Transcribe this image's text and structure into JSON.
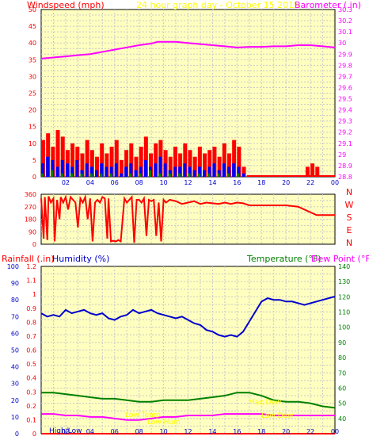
{
  "colors": {
    "plot_bg": "#FFFFC0",
    "page_bg": "#FFFFFF",
    "frame": "#000000",
    "grid": "#C8C8C8",
    "wind_red": "#FF0000",
    "wind_blue": "#0000FF",
    "wind_green": "#008000",
    "barometer": "#FF00FF",
    "direction": "#FF0000",
    "rain": "#FF0000",
    "humidity": "#0000CC",
    "temperature": "#008000",
    "dewpoint": "#FF00FF",
    "title_yellow": "#FFFF00",
    "highlow": "#FFFF00"
  },
  "header": {
    "windspeed_label": "Windspeed (mph)",
    "title": "24 hour graph day - October 15 2015",
    "barometer_label": "Barometer (.in)"
  },
  "direction_panel": {
    "compass": [
      "N",
      "W",
      "S",
      "E",
      "N"
    ]
  },
  "bottom_header": {
    "rainfall_label": "Rainfall (.in)",
    "humidity_label": "Humidity (%)",
    "temperature_label": "Temperature (°F)",
    "dewpoint_label": "Dew Point (°F)"
  },
  "annotations": {
    "high_low_label": "High/Low",
    "low_temp": "Low Temp",
    "low_hum": "Low Hum",
    "max_dew": "Max Dew",
    "low_dew": "Low Dew"
  },
  "chart_data": [
    {
      "type": "bar",
      "id": "wind",
      "title": "24 hour graph day - October 15 2015",
      "ylabel": "Windspeed (mph)",
      "y2label": "Barometer (.in)",
      "ylim": [
        0,
        50
      ],
      "y2lim": [
        28.8,
        30.3
      ],
      "yticks": [
        0,
        5,
        10,
        15,
        20,
        25,
        30,
        35,
        40,
        45,
        50
      ],
      "y2ticks": [
        "28.8",
        "28.9",
        "29",
        "29.1",
        "29.2",
        "29.3",
        "29.4",
        "29.5",
        "29.6",
        "29.7",
        "29.8",
        "29.9",
        "30",
        "30.1",
        "30.2",
        "30.3"
      ],
      "xticks": [
        "02",
        "04",
        "06",
        "08",
        "10",
        "12",
        "14",
        "16",
        "18",
        "20",
        "22",
        "00"
      ],
      "xlim_hours": [
        0,
        24
      ],
      "grid": true,
      "series": [
        {
          "name": "Barometer (.in)",
          "role": "line",
          "x": [
            0,
            1,
            2,
            3,
            4,
            5,
            6,
            7,
            8,
            9,
            9.5,
            10,
            11,
            12,
            13,
            14,
            15,
            16,
            17,
            18,
            19,
            20,
            21,
            22,
            23,
            24
          ],
          "values": [
            29.86,
            29.87,
            29.88,
            29.89,
            29.9,
            29.92,
            29.94,
            29.96,
            29.98,
            29.995,
            30.01,
            30.01,
            30.01,
            30.0,
            29.99,
            29.98,
            29.97,
            29.96,
            29.965,
            29.965,
            29.97,
            29.97,
            29.98,
            29.98,
            29.97,
            29.96
          ]
        },
        {
          "name": "Wind gust",
          "role": "bars",
          "x": [
            0.0,
            0.4,
            0.8,
            1.2,
            1.6,
            2.0,
            2.4,
            2.8,
            3.2,
            3.6,
            4.0,
            4.4,
            4.8,
            5.2,
            5.6,
            6.0,
            6.4,
            6.8,
            7.2,
            7.6,
            8.0,
            8.4,
            8.8,
            9.2,
            9.6,
            10.0,
            10.4,
            10.8,
            11.2,
            11.6,
            12.0,
            12.4,
            12.8,
            13.2,
            13.6,
            14.0,
            14.4,
            14.8,
            15.2,
            15.6,
            16.0,
            16.4,
            16.8,
            17.2,
            17.6,
            18.0,
            18.4,
            18.8,
            19.2,
            19.6,
            20.0,
            20.4,
            20.8,
            21.2,
            21.6,
            22.0,
            22.4,
            22.8,
            23.2,
            23.6
          ],
          "values": [
            11,
            13,
            9,
            14,
            12,
            8,
            10,
            9,
            7,
            11,
            8,
            6,
            10,
            7,
            9,
            11,
            5,
            8,
            10,
            6,
            9,
            12,
            7,
            10,
            11,
            8,
            6,
            9,
            7,
            10,
            8,
            6,
            9,
            7,
            8,
            9,
            6,
            10,
            7,
            11,
            9,
            3,
            0,
            0,
            0,
            0,
            0,
            0,
            0,
            0,
            0,
            0,
            0,
            0,
            3,
            4,
            3,
            0,
            0,
            0
          ]
        },
        {
          "name": "Wind speed",
          "role": "bars",
          "x": [
            0.0,
            0.4,
            0.8,
            1.2,
            1.6,
            2.0,
            2.4,
            2.8,
            3.2,
            3.6,
            4.0,
            4.4,
            4.8,
            5.2,
            5.6,
            6.0,
            6.4,
            6.8,
            7.2,
            7.6,
            8.0,
            8.4,
            8.8,
            9.2,
            9.6,
            10.0,
            10.4,
            10.8,
            11.2,
            11.6,
            12.0,
            12.4,
            12.8,
            13.2,
            13.6,
            14.0,
            14.4,
            14.8,
            15.2,
            15.6,
            16.0,
            16.4,
            16.8
          ],
          "values": [
            4,
            6,
            5,
            3,
            5,
            4,
            3,
            5,
            2,
            4,
            3,
            2,
            4,
            3,
            3,
            4,
            1,
            3,
            4,
            2,
            3,
            5,
            3,
            4,
            6,
            4,
            2,
            3,
            3,
            4,
            3,
            2,
            3,
            2,
            3,
            4,
            2,
            4,
            3,
            4,
            3,
            1,
            0
          ]
        },
        {
          "name": "Wind average",
          "role": "bars",
          "x": [
            0.0,
            0.8,
            1.6,
            2.4,
            3.2,
            4.0,
            4.8,
            5.6,
            6.4,
            7.2,
            8.0,
            8.8,
            9.6,
            10.4,
            11.2,
            12.0,
            12.8,
            13.6,
            14.4,
            15.2,
            16.0
          ],
          "values": [
            1,
            2,
            1,
            1,
            1,
            1,
            1,
            1,
            0,
            1,
            1,
            2,
            1,
            1,
            1,
            1,
            1,
            1,
            1,
            1,
            1
          ]
        }
      ]
    },
    {
      "type": "line",
      "id": "direction",
      "ylabel": "Wind direction (°)",
      "ylim": [
        0,
        360
      ],
      "yticks": [
        0,
        90,
        180,
        270,
        360
      ],
      "xlim_hours": [
        0,
        24
      ],
      "grid": true,
      "series": [
        {
          "name": "Direction",
          "x": [
            0.0,
            0.2,
            0.3,
            0.5,
            0.6,
            0.8,
            1.0,
            1.1,
            1.3,
            1.5,
            1.6,
            1.8,
            2.0,
            2.2,
            2.4,
            2.6,
            2.8,
            3.0,
            3.2,
            3.4,
            3.6,
            3.8,
            4.0,
            4.2,
            4.4,
            4.6,
            4.8,
            5.0,
            5.2,
            5.4,
            5.5,
            5.7,
            5.9,
            6.1,
            6.3,
            6.5,
            6.8,
            7.0,
            7.2,
            7.4,
            7.6,
            7.8,
            8.0,
            8.2,
            8.4,
            8.6,
            8.8,
            9.0,
            9.2,
            9.4,
            9.6,
            9.8,
            10.0,
            10.2,
            10.5,
            11.0,
            11.5,
            12.0,
            12.5,
            13.0,
            13.5,
            14.0,
            14.5,
            15.0,
            15.5,
            16.0,
            16.5,
            17.0,
            18.0,
            19.0,
            20.0,
            21.0,
            22.0,
            22.5,
            23.0,
            24.0
          ],
          "values": [
            330,
            40,
            340,
            30,
            345,
            300,
            330,
            20,
            320,
            180,
            340,
            300,
            340,
            250,
            340,
            320,
            300,
            120,
            330,
            300,
            340,
            180,
            330,
            20,
            300,
            320,
            300,
            340,
            330,
            40,
            330,
            20,
            25,
            20,
            30,
            20,
            330,
            300,
            320,
            340,
            10,
            320,
            320,
            300,
            330,
            60,
            320,
            310,
            320,
            60,
            300,
            20,
            320,
            300,
            320,
            310,
            290,
            300,
            310,
            290,
            300,
            295,
            290,
            300,
            290,
            300,
            295,
            280,
            280,
            280,
            280,
            270,
            230,
            210,
            210,
            210
          ]
        }
      ]
    },
    {
      "type": "line",
      "id": "temp_hum_rain",
      "ylabel": "Rainfall (.in)",
      "y2label": "Humidity (%)",
      "y3label": "Temperature (°F)",
      "y4label": "Dew Point (°F)",
      "rain_ylim": [
        0,
        1.2
      ],
      "hum_ylim": [
        0,
        100
      ],
      "temp_ylim": [
        30,
        140
      ],
      "rain_ticks": [
        "0",
        "0.1",
        "0.2",
        "0.3",
        "0.4",
        "0.5",
        "0.6",
        "0.7",
        "0.8",
        "0.9",
        "1",
        "1.1",
        "1.2"
      ],
      "hum_ticks": [
        "0",
        "10",
        "20",
        "30",
        "40",
        "50",
        "60",
        "70",
        "80",
        "90",
        "100"
      ],
      "temp_ticks": [
        "40",
        "50",
        "60",
        "70",
        "80",
        "90",
        "100",
        "110",
        "120",
        "130",
        "140"
      ],
      "xticks": [
        "02",
        "04",
        "06",
        "08",
        "10",
        "12",
        "14",
        "16",
        "18",
        "20",
        "22",
        "00"
      ],
      "xlim_hours": [
        0,
        24
      ],
      "grid": true,
      "series": [
        {
          "name": "Humidity (%)",
          "x": [
            0,
            0.5,
            1,
            1.5,
            2,
            2.5,
            3,
            3.5,
            4,
            4.5,
            5,
            5.5,
            6,
            6.5,
            7,
            7.5,
            8,
            8.5,
            9,
            9.5,
            10,
            10.5,
            11,
            11.5,
            12,
            12.5,
            13,
            13.5,
            14,
            14.5,
            15,
            15.5,
            16,
            16.5,
            17,
            17.5,
            18,
            18.5,
            19,
            19.5,
            20,
            20.5,
            21,
            21.5,
            22,
            22.5,
            23,
            23.5,
            24
          ],
          "values": [
            72,
            70,
            71,
            70,
            74,
            72,
            73,
            74,
            72,
            71,
            72,
            69,
            68,
            70,
            71,
            74,
            72,
            73,
            74,
            72,
            71,
            70,
            69,
            70,
            68,
            66,
            65,
            62,
            61,
            59,
            58,
            59,
            58,
            61,
            67,
            73,
            79,
            81,
            80,
            80,
            79,
            79,
            78,
            77,
            78,
            79,
            80,
            81,
            82
          ]
        },
        {
          "name": "Temperature (°F)",
          "x": [
            0,
            1,
            2,
            3,
            4,
            5,
            6,
            7,
            8,
            9,
            10,
            11,
            12,
            13,
            14,
            15,
            16,
            17,
            18,
            19,
            20,
            21,
            22,
            23,
            24
          ],
          "values": [
            57,
            57,
            56,
            55,
            54,
            53,
            53,
            52,
            51,
            51,
            52,
            52,
            52,
            53,
            54,
            55,
            57,
            57,
            55,
            52,
            51,
            51,
            50,
            48,
            47
          ]
        },
        {
          "name": "Dew Point (°F)",
          "x": [
            0,
            1,
            2,
            3,
            4,
            5,
            6,
            7,
            8,
            9,
            10,
            11,
            12,
            13,
            14,
            15,
            16,
            17,
            18,
            19,
            20,
            21,
            22,
            23,
            24
          ],
          "values": [
            43,
            43,
            42,
            42,
            41,
            41,
            40,
            39,
            39,
            40,
            41,
            41,
            42,
            42,
            42,
            43,
            43,
            43,
            43,
            42,
            42,
            42,
            42,
            42,
            42
          ]
        },
        {
          "name": "Rainfall (.in)",
          "x": [
            0,
            24
          ],
          "values": [
            0,
            0
          ]
        }
      ]
    }
  ]
}
